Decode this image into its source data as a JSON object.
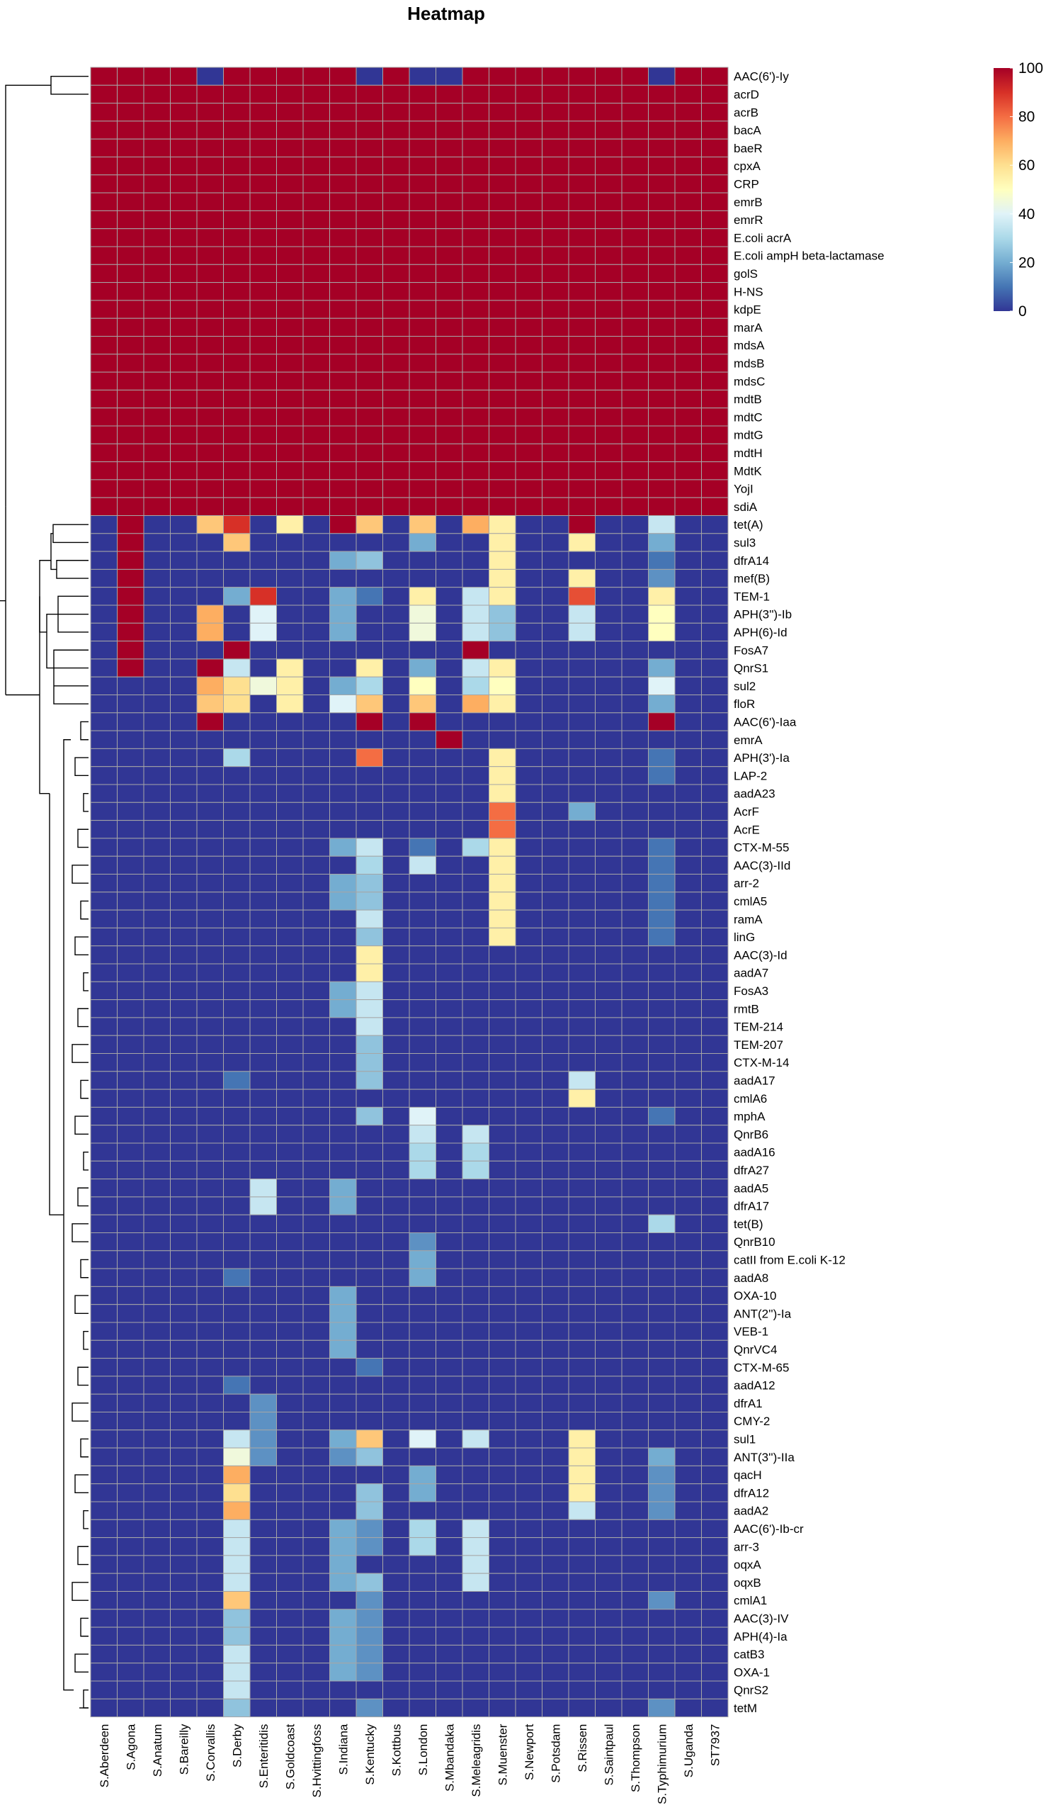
{
  "chart_data": {
    "type": "heatmap",
    "title": "Heatmap",
    "colorbar": {
      "min": 0,
      "max": 100,
      "ticks": [
        0,
        20,
        40,
        60,
        80,
        100
      ],
      "colors": [
        "#313695",
        "#4575b4",
        "#74add1",
        "#abd9e9",
        "#e0f3f8",
        "#ffffbf",
        "#fee090",
        "#fdae61",
        "#f46d43",
        "#d73027",
        "#a50026"
      ]
    },
    "columns": [
      "S.Aberdeen",
      "S.Agona",
      "S.Anatum",
      "S.Bareilly",
      "S.Corvallis",
      "S.Derby",
      "S.Enteritidis",
      "S.Goldcoast",
      "S.Hvittingfoss",
      "S.Indiana",
      "S.Kentucky",
      "S.Kottbus",
      "S.London",
      "S.Mbandaka",
      "S.Meleagridis",
      "S.Muenster",
      "S.Newport",
      "S.Potsdam",
      "S.Rissen",
      "S.Saintpaul",
      "S.Thompson",
      "S.Typhimurium",
      "S.Uganda",
      "ST7937"
    ],
    "rows": [
      "AAC(6')-Iy",
      "acrD",
      "acrB",
      "bacA",
      "baeR",
      "cpxA",
      "CRP",
      "emrB",
      "emrR",
      "E.coli acrA",
      "E.coli ampH beta-lactamase",
      "golS",
      "H-NS",
      "kdpE",
      "marA",
      "mdsA",
      "mdsB",
      "mdsC",
      "mdtB",
      "mdtC",
      "mdtG",
      "mdtH",
      "MdtK",
      "YojI",
      "sdiA",
      "tet(A)",
      "sul3",
      "dfrA14",
      "mef(B)",
      "TEM-1",
      "APH(3'')-Ib",
      "APH(6)-Id",
      "FosA7",
      "QnrS1",
      "sul2",
      "floR",
      "AAC(6')-Iaa",
      "emrA",
      "APH(3')-Ia",
      "LAP-2",
      "aadA23",
      "AcrF",
      "AcrE",
      "CTX-M-55",
      "AAC(3)-IId",
      "arr-2",
      "cmlA5",
      "ramA",
      "linG",
      "AAC(3)-Id",
      "aadA7",
      "FosA3",
      "rmtB",
      "TEM-214",
      "TEM-207",
      "CTX-M-14",
      "aadA17",
      "cmlA6",
      "mphA",
      "QnrB6",
      "aadA16",
      "dfrA27",
      "aadA5",
      "dfrA17",
      "tet(B)",
      "QnrB10",
      "catII from E.coli K-12",
      "aadA8",
      "OXA-10",
      "ANT(2'')-Ia",
      "VEB-1",
      "QnrVC4",
      "CTX-M-65",
      "aadA12",
      "dfrA1",
      "CMY-2",
      "sul1",
      "ANT(3'')-IIa",
      "qacH",
      "dfrA12",
      "aadA2",
      "AAC(6')-Ib-cr",
      "arr-3",
      "oqxA",
      "oqxB",
      "cmlA1",
      "AAC(3)-IV",
      "APH(4)-Ia",
      "catB3",
      "OXA-1",
      "QnrS2",
      "tetM"
    ],
    "default_value": 0,
    "full_rows_value": 100,
    "full_rows_count": 25,
    "full_row_exceptions": [
      [
        0,
        4,
        0
      ],
      [
        0,
        10,
        0
      ],
      [
        0,
        12,
        0
      ],
      [
        0,
        13,
        0
      ],
      [
        0,
        21,
        0
      ]
    ],
    "cells": [
      [
        25,
        1,
        100
      ],
      [
        25,
        4,
        65
      ],
      [
        25,
        5,
        90
      ],
      [
        25,
        7,
        55
      ],
      [
        25,
        9,
        100
      ],
      [
        25,
        10,
        65
      ],
      [
        25,
        12,
        65
      ],
      [
        25,
        14,
        70
      ],
      [
        25,
        15,
        55
      ],
      [
        25,
        18,
        100
      ],
      [
        25,
        21,
        35
      ],
      [
        26,
        1,
        100
      ],
      [
        26,
        5,
        65
      ],
      [
        26,
        12,
        20
      ],
      [
        26,
        15,
        55
      ],
      [
        26,
        18,
        55
      ],
      [
        26,
        21,
        20
      ],
      [
        27,
        1,
        100
      ],
      [
        27,
        9,
        20
      ],
      [
        27,
        10,
        25
      ],
      [
        27,
        15,
        55
      ],
      [
        27,
        21,
        10
      ],
      [
        28,
        1,
        100
      ],
      [
        28,
        15,
        55
      ],
      [
        28,
        18,
        55
      ],
      [
        28,
        21,
        15
      ],
      [
        29,
        1,
        100
      ],
      [
        29,
        5,
        20
      ],
      [
        29,
        6,
        90
      ],
      [
        29,
        9,
        20
      ],
      [
        29,
        10,
        10
      ],
      [
        29,
        12,
        55
      ],
      [
        29,
        14,
        35
      ],
      [
        29,
        15,
        55
      ],
      [
        29,
        18,
        85
      ],
      [
        29,
        21,
        55
      ],
      [
        30,
        1,
        100
      ],
      [
        30,
        4,
        70
      ],
      [
        30,
        6,
        40
      ],
      [
        30,
        9,
        20
      ],
      [
        30,
        12,
        45
      ],
      [
        30,
        14,
        35
      ],
      [
        30,
        15,
        25
      ],
      [
        30,
        18,
        35
      ],
      [
        30,
        21,
        50
      ],
      [
        31,
        1,
        100
      ],
      [
        31,
        4,
        70
      ],
      [
        31,
        6,
        40
      ],
      [
        31,
        9,
        20
      ],
      [
        31,
        12,
        45
      ],
      [
        31,
        14,
        35
      ],
      [
        31,
        15,
        25
      ],
      [
        31,
        18,
        35
      ],
      [
        31,
        21,
        50
      ],
      [
        32,
        1,
        100
      ],
      [
        32,
        5,
        100
      ],
      [
        32,
        14,
        100
      ],
      [
        33,
        1,
        100
      ],
      [
        33,
        4,
        100
      ],
      [
        33,
        5,
        35
      ],
      [
        33,
        7,
        55
      ],
      [
        33,
        10,
        55
      ],
      [
        33,
        12,
        20
      ],
      [
        33,
        14,
        35
      ],
      [
        33,
        15,
        55
      ],
      [
        33,
        21,
        20
      ],
      [
        34,
        4,
        70
      ],
      [
        34,
        5,
        60
      ],
      [
        34,
        6,
        45
      ],
      [
        34,
        7,
        55
      ],
      [
        34,
        9,
        20
      ],
      [
        34,
        10,
        30
      ],
      [
        34,
        12,
        50
      ],
      [
        34,
        14,
        30
      ],
      [
        34,
        15,
        50
      ],
      [
        34,
        21,
        40
      ],
      [
        35,
        4,
        65
      ],
      [
        35,
        5,
        60
      ],
      [
        35,
        7,
        55
      ],
      [
        35,
        9,
        40
      ],
      [
        35,
        10,
        65
      ],
      [
        35,
        12,
        65
      ],
      [
        35,
        14,
        70
      ],
      [
        35,
        15,
        55
      ],
      [
        35,
        21,
        20
      ],
      [
        36,
        4,
        100
      ],
      [
        36,
        10,
        100
      ],
      [
        36,
        12,
        100
      ],
      [
        36,
        21,
        100
      ],
      [
        37,
        13,
        100
      ],
      [
        38,
        5,
        30
      ],
      [
        38,
        10,
        80
      ],
      [
        38,
        15,
        55
      ],
      [
        38,
        21,
        10
      ],
      [
        39,
        15,
        55
      ],
      [
        39,
        21,
        10
      ],
      [
        40,
        15,
        55
      ],
      [
        41,
        15,
        80
      ],
      [
        41,
        18,
        20
      ],
      [
        42,
        15,
        80
      ],
      [
        43,
        9,
        20
      ],
      [
        43,
        10,
        35
      ],
      [
        43,
        12,
        10
      ],
      [
        43,
        14,
        30
      ],
      [
        43,
        15,
        55
      ],
      [
        43,
        21,
        10
      ],
      [
        44,
        10,
        30
      ],
      [
        44,
        12,
        35
      ],
      [
        44,
        15,
        55
      ],
      [
        44,
        21,
        10
      ],
      [
        45,
        9,
        20
      ],
      [
        45,
        10,
        25
      ],
      [
        45,
        15,
        55
      ],
      [
        45,
        21,
        10
      ],
      [
        46,
        9,
        20
      ],
      [
        46,
        10,
        25
      ],
      [
        46,
        15,
        55
      ],
      [
        46,
        21,
        10
      ],
      [
        47,
        10,
        35
      ],
      [
        47,
        15,
        55
      ],
      [
        47,
        21,
        10
      ],
      [
        48,
        10,
        25
      ],
      [
        48,
        15,
        55
      ],
      [
        48,
        21,
        10
      ],
      [
        49,
        10,
        55
      ],
      [
        50,
        10,
        55
      ],
      [
        51,
        9,
        20
      ],
      [
        51,
        10,
        35
      ],
      [
        52,
        9,
        20
      ],
      [
        52,
        10,
        35
      ],
      [
        53,
        10,
        35
      ],
      [
        54,
        10,
        25
      ],
      [
        55,
        10,
        25
      ],
      [
        56,
        5,
        10
      ],
      [
        56,
        10,
        25
      ],
      [
        56,
        18,
        35
      ],
      [
        57,
        18,
        55
      ],
      [
        58,
        10,
        25
      ],
      [
        58,
        12,
        40
      ],
      [
        58,
        21,
        10
      ],
      [
        59,
        12,
        35
      ],
      [
        59,
        14,
        35
      ],
      [
        60,
        12,
        30
      ],
      [
        60,
        14,
        30
      ],
      [
        61,
        12,
        30
      ],
      [
        61,
        14,
        30
      ],
      [
        62,
        6,
        35
      ],
      [
        62,
        9,
        20
      ],
      [
        63,
        6,
        35
      ],
      [
        63,
        9,
        20
      ],
      [
        64,
        21,
        30
      ],
      [
        65,
        12,
        15
      ],
      [
        66,
        12,
        20
      ],
      [
        67,
        5,
        10
      ],
      [
        67,
        12,
        20
      ],
      [
        68,
        9,
        20
      ],
      [
        69,
        9,
        20
      ],
      [
        70,
        9,
        20
      ],
      [
        71,
        9,
        20
      ],
      [
        72,
        10,
        10
      ],
      [
        73,
        5,
        10
      ],
      [
        74,
        6,
        15
      ],
      [
        75,
        6,
        15
      ],
      [
        76,
        5,
        35
      ],
      [
        76,
        6,
        15
      ],
      [
        76,
        9,
        20
      ],
      [
        76,
        10,
        65
      ],
      [
        76,
        12,
        40
      ],
      [
        76,
        14,
        35
      ],
      [
        76,
        18,
        55
      ],
      [
        77,
        5,
        45
      ],
      [
        77,
        6,
        15
      ],
      [
        77,
        9,
        15
      ],
      [
        77,
        10,
        25
      ],
      [
        77,
        18,
        55
      ],
      [
        77,
        21,
        20
      ],
      [
        78,
        5,
        70
      ],
      [
        78,
        12,
        20
      ],
      [
        78,
        18,
        55
      ],
      [
        78,
        21,
        15
      ],
      [
        79,
        5,
        60
      ],
      [
        79,
        10,
        25
      ],
      [
        79,
        12,
        20
      ],
      [
        79,
        18,
        55
      ],
      [
        79,
        21,
        15
      ],
      [
        80,
        5,
        70
      ],
      [
        80,
        10,
        25
      ],
      [
        80,
        18,
        35
      ],
      [
        80,
        21,
        15
      ],
      [
        81,
        5,
        35
      ],
      [
        81,
        9,
        20
      ],
      [
        81,
        10,
        15
      ],
      [
        81,
        12,
        30
      ],
      [
        81,
        14,
        35
      ],
      [
        82,
        5,
        35
      ],
      [
        82,
        9,
        20
      ],
      [
        82,
        10,
        15
      ],
      [
        82,
        12,
        30
      ],
      [
        82,
        14,
        35
      ],
      [
        83,
        5,
        35
      ],
      [
        83,
        9,
        20
      ],
      [
        83,
        14,
        35
      ],
      [
        84,
        5,
        35
      ],
      [
        84,
        9,
        20
      ],
      [
        84,
        10,
        25
      ],
      [
        84,
        14,
        35
      ],
      [
        85,
        5,
        65
      ],
      [
        85,
        10,
        15
      ],
      [
        85,
        21,
        15
      ],
      [
        86,
        5,
        25
      ],
      [
        86,
        9,
        20
      ],
      [
        86,
        10,
        15
      ],
      [
        87,
        5,
        25
      ],
      [
        87,
        9,
        20
      ],
      [
        87,
        10,
        15
      ],
      [
        88,
        5,
        35
      ],
      [
        88,
        9,
        20
      ],
      [
        88,
        10,
        15
      ],
      [
        89,
        5,
        35
      ],
      [
        89,
        9,
        20
      ],
      [
        89,
        10,
        15
      ],
      [
        90,
        5,
        35
      ],
      [
        91,
        5,
        25
      ],
      [
        91,
        10,
        15
      ],
      [
        91,
        21,
        15
      ]
    ]
  }
}
